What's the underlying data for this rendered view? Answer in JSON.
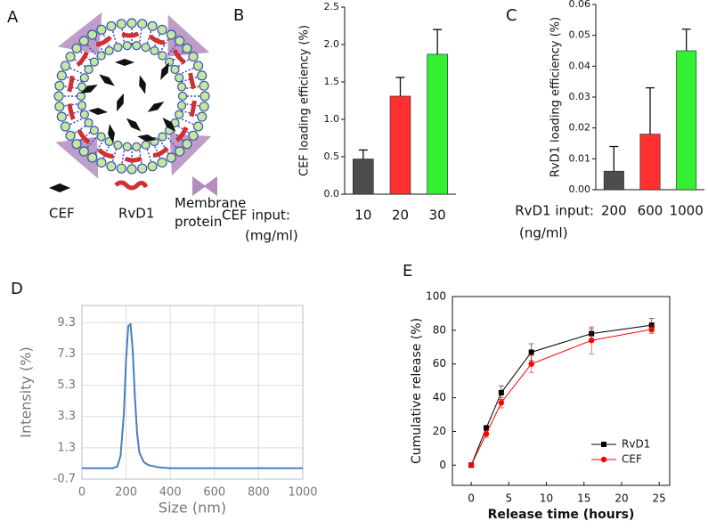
{
  "panel_a": {
    "label": "A",
    "legend": [
      "CEF",
      "RvD1",
      "Membrane protein"
    ]
  },
  "chart_data": [
    {
      "type": "bar",
      "panel": "B",
      "ylabel": "CEF loading efficiency (%)",
      "xlabel": "CEF input:",
      "xunit": "(mg/ml)",
      "categories": [
        "10",
        "20",
        "30"
      ],
      "values": [
        0.47,
        1.31,
        1.87
      ],
      "errors": [
        0.12,
        0.25,
        0.33
      ],
      "colors": [
        "#4d4d4d",
        "#ff3030",
        "#33f033"
      ],
      "ylim": [
        0,
        2.5
      ],
      "yticks": [
        {
          "value": 0,
          "label": "0.0"
        },
        0.5,
        {
          "value": 1,
          "label": "1.0"
        },
        1.5,
        {
          "value": 2,
          "label": "2.0"
        },
        2.5
      ]
    },
    {
      "type": "bar",
      "panel": "C",
      "ylabel": "RvD1 loading efficiency (%)",
      "xlabel": "RvD1 input:",
      "xunit": "(ng/ml)",
      "categories": [
        "200",
        "600",
        "1000"
      ],
      "values": [
        0.006,
        0.018,
        0.045
      ],
      "errors": [
        0.008,
        0.015,
        0.007
      ],
      "colors": [
        "#4d4d4d",
        "#ff3030",
        "#33f033"
      ],
      "ylim": [
        0,
        0.06
      ],
      "yticks": [
        {
          "value": 0,
          "label": "0.00"
        },
        0.01,
        0.02,
        0.03,
        0.04,
        0.05,
        0.06
      ]
    },
    {
      "type": "line",
      "panel": "D",
      "xlabel": "Size (nm)",
      "ylabel": "Intensity (%)",
      "x": [
        0,
        140,
        160,
        175,
        190,
        200,
        210,
        220,
        230,
        240,
        250,
        260,
        280,
        300,
        350,
        400,
        600,
        1000
      ],
      "values": [
        0,
        0,
        0.1,
        0.8,
        3.5,
        7,
        9.1,
        9.2,
        7.5,
        4.5,
        2.2,
        1.0,
        0.4,
        0.2,
        0.05,
        0,
        0,
        0
      ],
      "color": "#4a7ebb",
      "xlim": [
        0,
        1000
      ],
      "ylim": [
        -0.7,
        10.4
      ],
      "xticks": [
        0,
        200,
        400,
        600,
        800,
        1000
      ],
      "yticks": [
        -0.7,
        1.3,
        3.3,
        5.3,
        7.3,
        9.3
      ],
      "grid": true
    },
    {
      "type": "line",
      "panel": "E",
      "xlabel": "Release time (hours)",
      "ylabel": "Cumulative release (%)",
      "x": [
        0,
        2,
        4,
        8,
        16,
        24
      ],
      "series": [
        {
          "name": "RvD1",
          "color": "#000000",
          "marker": "square",
          "values": [
            0,
            22,
            43,
            67,
            78,
            83
          ],
          "errors": [
            0,
            1.5,
            4,
            5,
            3,
            4
          ]
        },
        {
          "name": "CEF",
          "color": "#ff0000",
          "marker": "circle",
          "values": [
            0,
            18.5,
            37,
            60,
            74,
            80.5
          ],
          "errors": [
            0,
            2,
            3,
            5,
            8,
            2.5
          ]
        }
      ],
      "xlim": [
        -2.5,
        26.4
      ],
      "ylim": [
        -12,
        100
      ],
      "xticks": [
        0,
        5,
        10,
        15,
        20,
        25
      ],
      "yticks": [
        0,
        20,
        40,
        60,
        80,
        100
      ],
      "legend": "lower right"
    }
  ]
}
